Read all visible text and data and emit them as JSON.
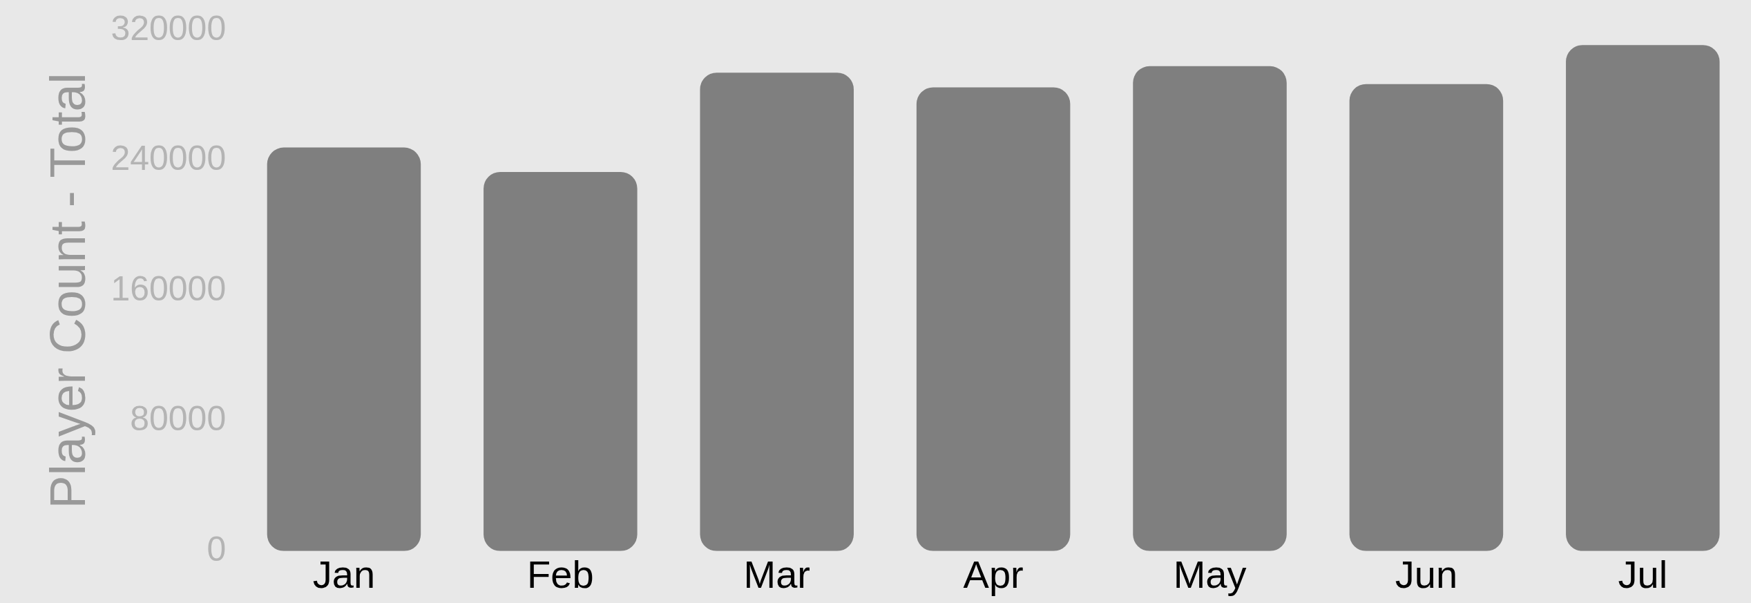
{
  "chart_data": {
    "type": "bar",
    "ylabel": "Player Count - Total",
    "categories": [
      "Jan",
      "Feb",
      "Mar",
      "Apr",
      "May",
      "Jun",
      "Jul"
    ],
    "values": [
      248000,
      233000,
      294000,
      285000,
      298000,
      287000,
      311000
    ],
    "color": "#7f7f7f",
    "ylim": [
      0,
      320000
    ],
    "yticks": [
      0,
      80000,
      160000,
      240000,
      320000
    ],
    "grid": false,
    "legend": false
  }
}
